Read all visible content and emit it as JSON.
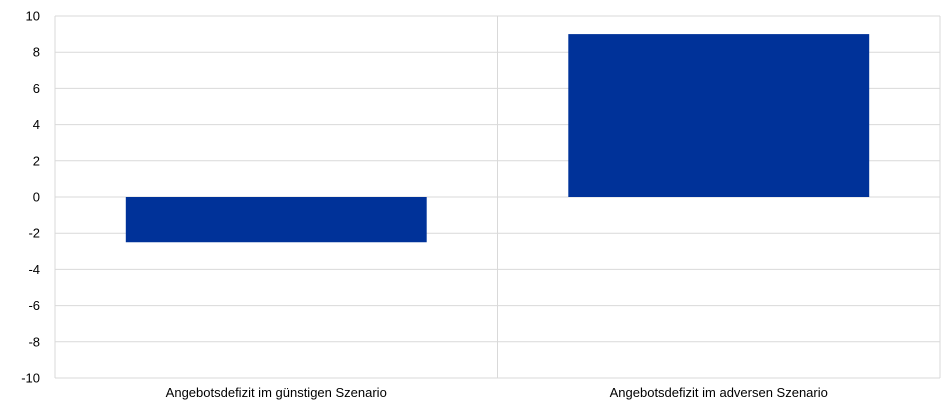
{
  "chart_data": {
    "type": "bar",
    "categories": [
      "Angebotsdefizit im günstigen Szenario",
      "Angebotsdefizit im adversen Szenario"
    ],
    "values": [
      -2.5,
      9.0
    ],
    "ylim": [
      -10,
      10
    ],
    "yticks": [
      10,
      8,
      6,
      4,
      2,
      0,
      -2,
      -4,
      -6,
      -8,
      -10
    ],
    "grid": true,
    "colors": {
      "bar": "#003299",
      "grid": "#d9d9d9",
      "text": "#000000"
    }
  }
}
